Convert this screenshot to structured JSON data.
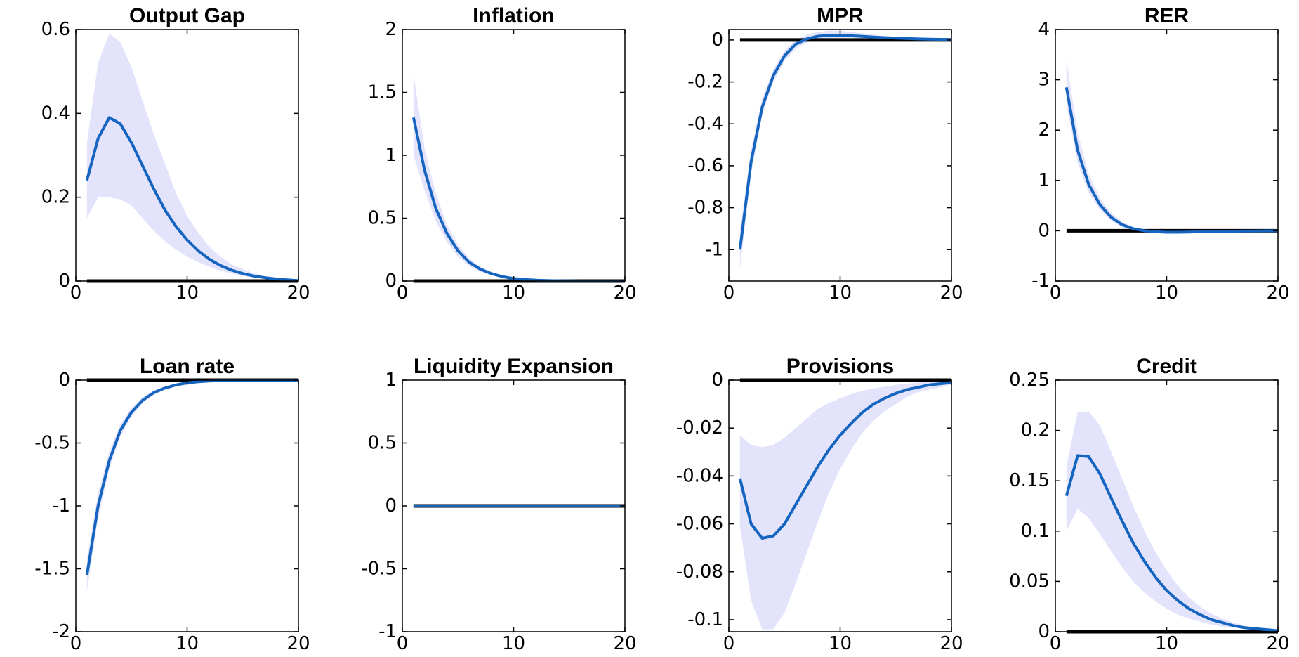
{
  "colors": {
    "line": "#1565c0",
    "band": "#e3e3fb",
    "zero": "#000000",
    "axis": "#000000"
  },
  "chart_data": [
    {
      "type": "line",
      "title": "Output Gap",
      "xlim": [
        0,
        20
      ],
      "ylim": [
        0,
        0.6
      ],
      "xticks": [
        0,
        10,
        20
      ],
      "yticks": [
        0,
        0.2,
        0.4,
        0.6
      ],
      "xtick_labels": [
        "0",
        "10",
        "20"
      ],
      "ytick_labels": [
        "0",
        "0.2",
        "0.4",
        "0.6"
      ],
      "x": [
        1,
        2,
        3,
        4,
        5,
        6,
        7,
        8,
        9,
        10,
        11,
        12,
        13,
        14,
        15,
        16,
        17,
        18,
        19,
        20
      ],
      "mean": [
        0.24,
        0.34,
        0.39,
        0.375,
        0.33,
        0.275,
        0.22,
        0.17,
        0.13,
        0.098,
        0.072,
        0.052,
        0.037,
        0.026,
        0.018,
        0.012,
        0.008,
        0.005,
        0.003,
        0.001
      ],
      "lower": [
        0.15,
        0.2,
        0.2,
        0.195,
        0.18,
        0.15,
        0.12,
        0.095,
        0.075,
        0.058,
        0.045,
        0.034,
        0.025,
        0.018,
        0.012,
        0.008,
        0.005,
        0.003,
        0.002,
        0.001
      ],
      "upper": [
        0.33,
        0.52,
        0.59,
        0.57,
        0.51,
        0.43,
        0.35,
        0.28,
        0.21,
        0.155,
        0.115,
        0.082,
        0.058,
        0.04,
        0.028,
        0.019,
        0.012,
        0.008,
        0.005,
        0.003
      ],
      "zero_line": 0
    },
    {
      "type": "line",
      "title": "Inflation",
      "xlim": [
        0,
        20
      ],
      "ylim": [
        0,
        2
      ],
      "xticks": [
        0,
        10,
        20
      ],
      "yticks": [
        0,
        0.5,
        1,
        1.5,
        2
      ],
      "xtick_labels": [
        "0",
        "10",
        "20"
      ],
      "ytick_labels": [
        "0",
        "0.5",
        "1",
        "1.5",
        "2"
      ],
      "x": [
        1,
        2,
        3,
        4,
        5,
        6,
        7,
        8,
        9,
        10,
        11,
        12,
        13,
        14,
        15,
        16,
        17,
        18,
        19,
        20
      ],
      "mean": [
        1.3,
        0.88,
        0.58,
        0.38,
        0.24,
        0.15,
        0.095,
        0.06,
        0.035,
        0.02,
        0.012,
        0.007,
        0.004,
        0.002,
        0.001,
        0,
        0,
        0,
        0,
        0
      ],
      "lower": [
        1.0,
        0.72,
        0.48,
        0.31,
        0.195,
        0.12,
        0.075,
        0.045,
        0.027,
        0.015,
        0.008,
        0.005,
        0.003,
        0.001,
        0,
        0,
        0,
        0,
        0,
        0
      ],
      "upper": [
        1.65,
        1.05,
        0.7,
        0.45,
        0.29,
        0.18,
        0.115,
        0.072,
        0.044,
        0.026,
        0.015,
        0.009,
        0.005,
        0.003,
        0.002,
        0.001,
        0,
        0,
        0,
        0
      ],
      "zero_line": 0
    },
    {
      "type": "line",
      "title": "MPR",
      "xlim": [
        0,
        20
      ],
      "ylim": [
        -1.15,
        0.05
      ],
      "xticks": [
        0,
        10,
        20
      ],
      "yticks": [
        -1,
        -0.8,
        -0.6,
        -0.4,
        -0.2,
        0
      ],
      "xtick_labels": [
        "0",
        "10",
        "20"
      ],
      "ytick_labels": [
        "-1",
        "-0.8",
        "-0.6",
        "-0.4",
        "-0.2",
        "0"
      ],
      "x": [
        1,
        2,
        3,
        4,
        5,
        6,
        7,
        8,
        9,
        10,
        11,
        12,
        13,
        14,
        15,
        16,
        17,
        18,
        19,
        20
      ],
      "mean": [
        -1.0,
        -0.58,
        -0.32,
        -0.17,
        -0.075,
        -0.02,
        0.005,
        0.018,
        0.022,
        0.022,
        0.02,
        0.017,
        0.014,
        0.011,
        0.009,
        0.007,
        0.005,
        0.004,
        0.003,
        0.002
      ],
      "lower": [
        -1.09,
        -0.64,
        -0.36,
        -0.2,
        -0.1,
        -0.042,
        -0.012,
        0.003,
        0.008,
        0.01,
        0.01,
        0.008,
        0.007,
        0.005,
        0.004,
        0.003,
        0.002,
        0.001,
        0.001,
        0
      ],
      "upper": [
        -0.91,
        -0.52,
        -0.28,
        -0.14,
        -0.05,
        0.002,
        0.025,
        0.038,
        0.045,
        0.044,
        0.038,
        0.031,
        0.025,
        0.019,
        0.015,
        0.011,
        0.008,
        0.006,
        0.005,
        0.004
      ],
      "zero_line": 0
    },
    {
      "type": "line",
      "title": "RER",
      "xlim": [
        0,
        20
      ],
      "ylim": [
        -1,
        4
      ],
      "xticks": [
        0,
        10,
        20
      ],
      "yticks": [
        -1,
        0,
        1,
        2,
        3,
        4
      ],
      "xtick_labels": [
        "0",
        "10",
        "20"
      ],
      "ytick_labels": [
        "-1",
        "0",
        "1",
        "2",
        "3",
        "4"
      ],
      "x": [
        1,
        2,
        3,
        4,
        5,
        6,
        7,
        8,
        9,
        10,
        11,
        12,
        13,
        14,
        15,
        16,
        17,
        18,
        19,
        20
      ],
      "mean": [
        2.85,
        1.6,
        0.92,
        0.52,
        0.27,
        0.12,
        0.04,
        0,
        -0.02,
        -0.03,
        -0.03,
        -0.025,
        -0.02,
        -0.015,
        -0.01,
        -0.008,
        -0.005,
        -0.004,
        -0.002,
        -0.001
      ],
      "lower": [
        2.5,
        1.35,
        0.75,
        0.42,
        0.2,
        0.07,
        0.005,
        -0.03,
        -0.05,
        -0.055,
        -0.05,
        -0.045,
        -0.035,
        -0.025,
        -0.02,
        -0.015,
        -0.01,
        -0.008,
        -0.005,
        -0.003
      ],
      "upper": [
        3.4,
        1.95,
        1.12,
        0.65,
        0.36,
        0.18,
        0.08,
        0.03,
        0.01,
        0,
        -0.005,
        -0.005,
        -0.003,
        -0.002,
        0,
        0,
        0,
        0,
        0,
        0
      ],
      "zero_line": 0
    },
    {
      "type": "line",
      "title": "Loan rate",
      "xlim": [
        0,
        20
      ],
      "ylim": [
        -2,
        0
      ],
      "xticks": [
        0,
        10,
        20
      ],
      "yticks": [
        -2,
        -1.5,
        -1,
        -0.5,
        0
      ],
      "xtick_labels": [
        "0",
        "10",
        "20"
      ],
      "ytick_labels": [
        "-2",
        "-1.5",
        "-1",
        "-0.5",
        "0"
      ],
      "x": [
        1,
        2,
        3,
        4,
        5,
        6,
        7,
        8,
        9,
        10,
        11,
        12,
        13,
        14,
        15,
        16,
        17,
        18,
        19,
        20
      ],
      "mean": [
        -1.55,
        -1.0,
        -0.64,
        -0.4,
        -0.255,
        -0.16,
        -0.1,
        -0.063,
        -0.038,
        -0.022,
        -0.013,
        -0.007,
        -0.004,
        -0.002,
        -0.001,
        0,
        0,
        0,
        0,
        0
      ],
      "lower": [
        -1.68,
        -1.1,
        -0.71,
        -0.45,
        -0.29,
        -0.185,
        -0.118,
        -0.075,
        -0.046,
        -0.028,
        -0.017,
        -0.01,
        -0.006,
        -0.003,
        -0.002,
        -0.001,
        0,
        0,
        0,
        0
      ],
      "upper": [
        -1.42,
        -0.9,
        -0.57,
        -0.35,
        -0.22,
        -0.135,
        -0.082,
        -0.05,
        -0.03,
        -0.016,
        -0.009,
        -0.004,
        -0.002,
        -0.001,
        0,
        0,
        0,
        0,
        0,
        0
      ],
      "zero_line": 0
    },
    {
      "type": "line",
      "title": "Liquidity Expansion",
      "xlim": [
        0,
        20
      ],
      "ylim": [
        -1,
        1
      ],
      "xticks": [
        0,
        10,
        20
      ],
      "yticks": [
        -1,
        -0.5,
        0,
        0.5,
        1
      ],
      "xtick_labels": [
        "0",
        "10",
        "20"
      ],
      "ytick_labels": [
        "-1",
        "-0.5",
        "0",
        "0.5",
        "1"
      ],
      "x": [
        1,
        2,
        3,
        4,
        5,
        6,
        7,
        8,
        9,
        10,
        11,
        12,
        13,
        14,
        15,
        16,
        17,
        18,
        19,
        20
      ],
      "mean": [
        0,
        0,
        0,
        0,
        0,
        0,
        0,
        0,
        0,
        0,
        0,
        0,
        0,
        0,
        0,
        0,
        0,
        0,
        0,
        0
      ],
      "lower": [
        0,
        0,
        0,
        0,
        0,
        0,
        0,
        0,
        0,
        0,
        0,
        0,
        0,
        0,
        0,
        0,
        0,
        0,
        0,
        0
      ],
      "upper": [
        0,
        0,
        0,
        0,
        0,
        0,
        0,
        0,
        0,
        0,
        0,
        0,
        0,
        0,
        0,
        0,
        0,
        0,
        0,
        0
      ],
      "zero_line": 0
    },
    {
      "type": "line",
      "title": "Provisions",
      "xlim": [
        0,
        20
      ],
      "ylim": [
        -0.105,
        0
      ],
      "xticks": [
        0,
        10,
        20
      ],
      "yticks": [
        -0.1,
        -0.08,
        -0.06,
        -0.04,
        -0.02,
        0
      ],
      "xtick_labels": [
        "0",
        "10",
        "20"
      ],
      "ytick_labels": [
        "-0.1",
        "-0.08",
        "-0.06",
        "-0.04",
        "-0.02",
        "0"
      ],
      "x": [
        1,
        2,
        3,
        4,
        5,
        6,
        7,
        8,
        9,
        10,
        11,
        12,
        13,
        14,
        15,
        16,
        17,
        18,
        19,
        20
      ],
      "mean": [
        -0.041,
        -0.06,
        -0.066,
        -0.065,
        -0.06,
        -0.052,
        -0.044,
        -0.036,
        -0.029,
        -0.023,
        -0.018,
        -0.0135,
        -0.01,
        -0.0075,
        -0.0055,
        -0.004,
        -0.003,
        -0.002,
        -0.0015,
        -0.001
      ],
      "lower": [
        -0.061,
        -0.092,
        -0.104,
        -0.104,
        -0.097,
        -0.085,
        -0.072,
        -0.059,
        -0.047,
        -0.037,
        -0.029,
        -0.022,
        -0.017,
        -0.013,
        -0.01,
        -0.007,
        -0.005,
        -0.004,
        -0.003,
        -0.002
      ],
      "upper": [
        -0.023,
        -0.027,
        -0.028,
        -0.027,
        -0.024,
        -0.02,
        -0.016,
        -0.012,
        -0.0095,
        -0.0075,
        -0.0058,
        -0.0045,
        -0.0035,
        -0.0027,
        -0.002,
        -0.0015,
        -0.001,
        -0.0008,
        -0.0005,
        -0.0003
      ],
      "zero_line": 0
    },
    {
      "type": "line",
      "title": "Credit",
      "xlim": [
        0,
        20
      ],
      "ylim": [
        0,
        0.25
      ],
      "xticks": [
        0,
        10,
        20
      ],
      "yticks": [
        0,
        0.05,
        0.1,
        0.15,
        0.2,
        0.25
      ],
      "xtick_labels": [
        "0",
        "10",
        "20"
      ],
      "ytick_labels": [
        "0",
        "0.05",
        "0.1",
        "0.15",
        "0.2",
        "0.25"
      ],
      "x": [
        1,
        2,
        3,
        4,
        5,
        6,
        7,
        8,
        9,
        10,
        11,
        12,
        13,
        14,
        15,
        16,
        17,
        18,
        19,
        20
      ],
      "mean": [
        0.135,
        0.175,
        0.174,
        0.157,
        0.133,
        0.11,
        0.088,
        0.07,
        0.054,
        0.041,
        0.031,
        0.023,
        0.017,
        0.012,
        0.009,
        0.006,
        0.004,
        0.003,
        0.002,
        0.001
      ],
      "lower": [
        0.1,
        0.122,
        0.113,
        0.097,
        0.08,
        0.064,
        0.05,
        0.039,
        0.03,
        0.023,
        0.017,
        0.013,
        0.01,
        0.007,
        0.005,
        0.004,
        0.003,
        0.002,
        0.001,
        0.001
      ],
      "upper": [
        0.165,
        0.218,
        0.219,
        0.205,
        0.179,
        0.152,
        0.125,
        0.1,
        0.079,
        0.061,
        0.046,
        0.034,
        0.025,
        0.018,
        0.013,
        0.009,
        0.006,
        0.004,
        0.003,
        0.002
      ],
      "zero_line": 0
    }
  ]
}
